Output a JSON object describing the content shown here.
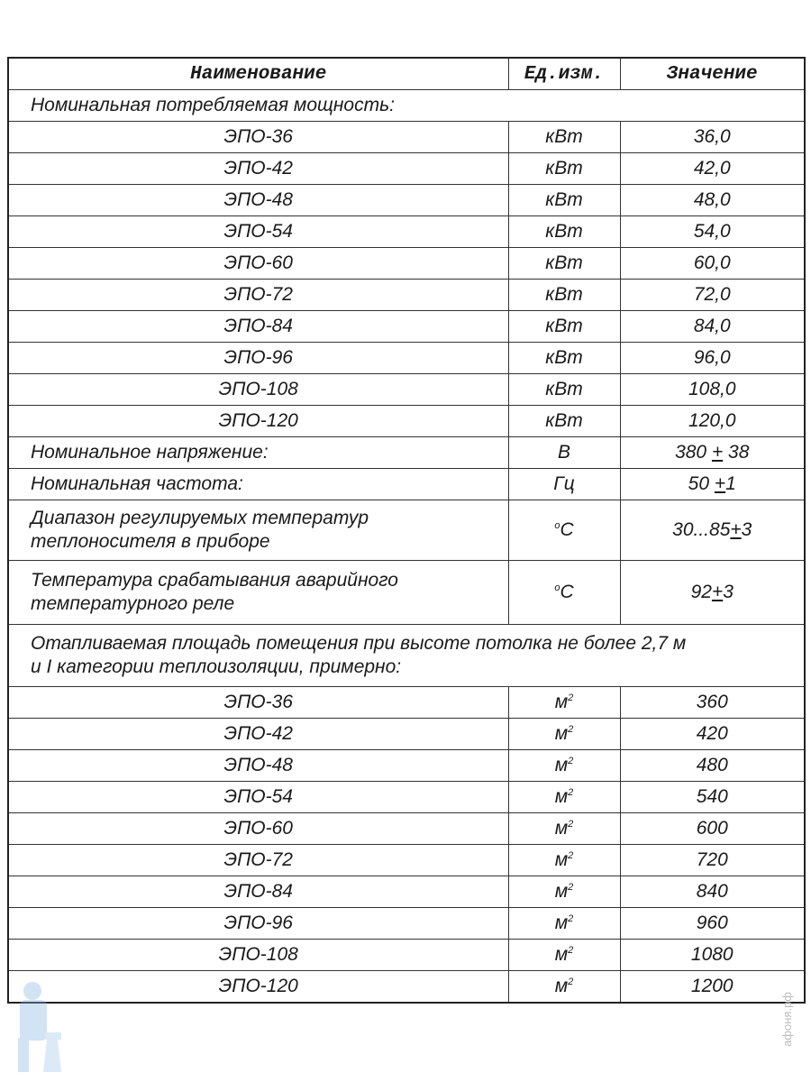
{
  "header": {
    "name": "Наименование",
    "unit": "Ед.изм.",
    "value": "Значение"
  },
  "power": {
    "title": "Номинальная потребляемая мощность:",
    "unit": "кВт",
    "rows": [
      [
        "ЭПО-36",
        "36,0"
      ],
      [
        "ЭПО-42",
        "42,0"
      ],
      [
        "ЭПО-48",
        "48,0"
      ],
      [
        "ЭПО-54",
        "54,0"
      ],
      [
        "ЭПО-60",
        "60,0"
      ],
      [
        "ЭПО-72",
        "72,0"
      ],
      [
        "ЭПО-84",
        "84,0"
      ],
      [
        "ЭПО-96",
        "96,0"
      ],
      [
        "ЭПО-108",
        "108,0"
      ],
      [
        "ЭПО-120",
        "120,0"
      ]
    ]
  },
  "voltage": {
    "label": "Номинальное напряжение:",
    "unit": "В",
    "value_a": "380 ",
    "pm": "+",
    "value_b": " 38"
  },
  "frequency": {
    "label": "Номинальная частота:",
    "unit": "Гц",
    "value_a": "50 ",
    "pm": "+",
    "value_b": "1"
  },
  "temp_range": {
    "label_1": "Диапазон регулируемых температур",
    "label_2": "теплоносителя в приборе",
    "unit_sup": "o",
    "unit": "С",
    "value_a": "30...85",
    "pm": "+",
    "value_b": "3"
  },
  "alarm_temp": {
    "label_1": "Температура срабатывания аварийного",
    "label_2": "температурного реле",
    "unit_sup": "o",
    "unit": "С",
    "value_a": "92",
    "pm": "+",
    "value_b": "3"
  },
  "area": {
    "title_1": "Отапливаемая площадь помещения при высоте потолка не более 2,7 м",
    "title_2": "и I категории теплоизоляции, примерно:",
    "unit": "м",
    "unit_sup": "2",
    "rows": [
      [
        "ЭПО-36",
        "360"
      ],
      [
        "ЭПО-42",
        "420"
      ],
      [
        "ЭПО-48",
        "480"
      ],
      [
        "ЭПО-54",
        "540"
      ],
      [
        "ЭПО-60",
        "600"
      ],
      [
        "ЭПО-72",
        "720"
      ],
      [
        "ЭПО-84",
        "840"
      ],
      [
        "ЭПО-96",
        "960"
      ],
      [
        "ЭПО-108",
        "1080"
      ],
      [
        "ЭПО-120",
        "1200"
      ]
    ]
  },
  "watermark": {
    "text": "афоня.рф"
  }
}
